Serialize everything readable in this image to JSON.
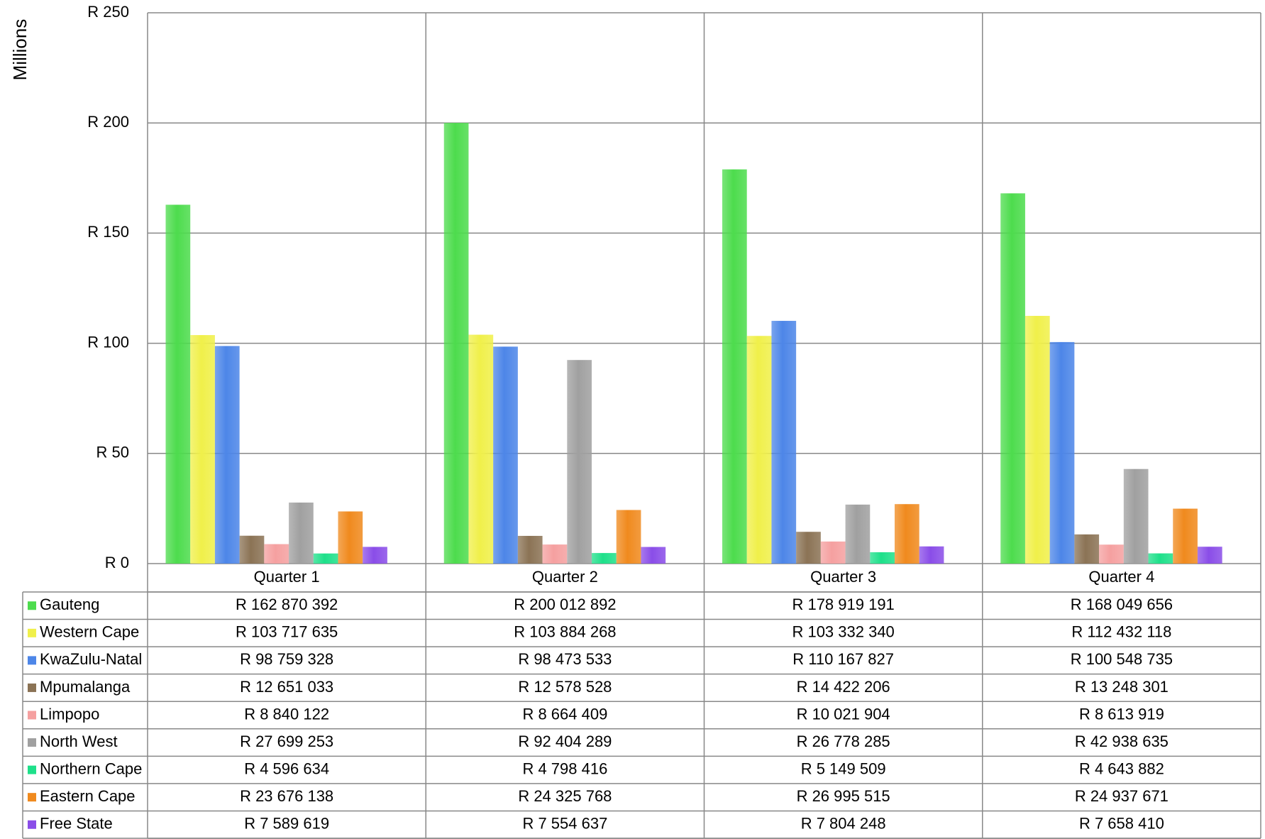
{
  "chart_data": {
    "type": "bar",
    "y_label": "Millions",
    "categories": [
      "Quarter 1",
      "Quarter 2",
      "Quarter 3",
      "Quarter 4"
    ],
    "series": [
      {
        "name": "Gauteng",
        "color": "#4ddc4d",
        "values": [
          162.870392,
          200.012892,
          178.919191,
          168.049656
        ],
        "value_labels": [
          "R 162 870 392",
          "R 200 012 892",
          "R 178 919 191",
          "R 168 049 656"
        ]
      },
      {
        "name": "Western Cape",
        "color": "#f0f04a",
        "values": [
          103.717635,
          103.884268,
          103.33234,
          112.432118
        ],
        "value_labels": [
          "R 103 717 635",
          "R 103 884 268",
          "R 103 332 340",
          "R 112 432 118"
        ]
      },
      {
        "name": "KwaZulu-Natal",
        "color": "#4d86e8",
        "values": [
          98.759328,
          98.473533,
          110.167827,
          100.548735
        ],
        "value_labels": [
          "R 98 759 328",
          "R 98 473 533",
          "R 110 167 827",
          "R 100 548 735"
        ]
      },
      {
        "name": "Mpumalanga",
        "color": "#8b7355",
        "values": [
          12.651033,
          12.578528,
          14.422206,
          13.248301
        ],
        "value_labels": [
          "R 12 651 033",
          "R 12 578 528",
          "R 14 422 206",
          "R 13 248 301"
        ]
      },
      {
        "name": "Limpopo",
        "color": "#f5a0a0",
        "values": [
          8.840122,
          8.664409,
          10.021904,
          8.613919
        ],
        "value_labels": [
          "R 8 840 122",
          "R 8 664 409",
          "R 10 021 904",
          "R 8 613 919"
        ]
      },
      {
        "name": "North West",
        "color": "#a0a0a0",
        "values": [
          27.699253,
          92.404289,
          26.778285,
          42.938635
        ],
        "value_labels": [
          "R 27 699 253",
          "R 92 404 289",
          "R 26 778 285",
          "R 42 938 635"
        ]
      },
      {
        "name": "Northern Cape",
        "color": "#1ee08a",
        "values": [
          4.596634,
          4.798416,
          5.149509,
          4.643882
        ],
        "value_labels": [
          "R 4 596 634",
          "R 4 798 416",
          "R 5 149 509",
          "R 4 643 882"
        ]
      },
      {
        "name": "Eastern Cape",
        "color": "#f08a1e",
        "values": [
          23.676138,
          24.325768,
          26.995515,
          24.937671
        ],
        "value_labels": [
          "R 23 676 138",
          "R 24 325 768",
          "R 26 995 515",
          "R 24 937 671"
        ]
      },
      {
        "name": "Free State",
        "color": "#8a4de8",
        "values": [
          7.589619,
          7.554637,
          7.804248,
          7.65841
        ],
        "value_labels": [
          "R 7 589 619",
          "R 7 554 637",
          "R 7 804 248",
          "R 7 658 410"
        ]
      }
    ],
    "ylim": [
      0,
      250
    ],
    "yticks": [
      {
        "value": 0,
        "label": "R 0"
      },
      {
        "value": 50,
        "label": "R 50"
      },
      {
        "value": 100,
        "label": "R 100"
      },
      {
        "value": 150,
        "label": "R 150"
      },
      {
        "value": 200,
        "label": "R 200"
      },
      {
        "value": 250,
        "label": "R 250"
      }
    ],
    "grid": true
  }
}
